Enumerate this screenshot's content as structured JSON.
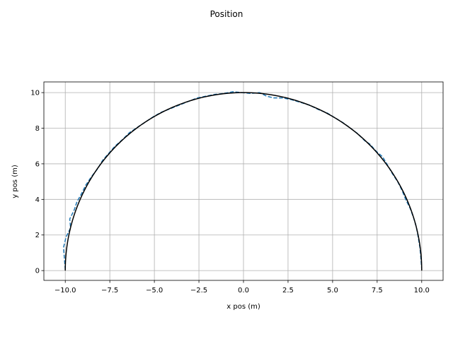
{
  "chart_data": {
    "type": "line",
    "title": "Position",
    "xlabel": "x pos (m)",
    "ylabel": "y pos (m)",
    "xlim": [
      -11.2,
      11.2
    ],
    "ylim": [
      -0.55,
      10.6
    ],
    "grid": true,
    "x_ticks": [
      -10.0,
      -7.5,
      -5.0,
      -2.5,
      0.0,
      2.5,
      5.0,
      7.5,
      10.0
    ],
    "x_tick_labels": [
      "−10.0",
      "−7.5",
      "−5.0",
      "−2.5",
      "0.0",
      "2.5",
      "5.0",
      "7.5",
      "10.0"
    ],
    "y_ticks": [
      0,
      2,
      4,
      6,
      8,
      10
    ],
    "y_tick_labels": [
      "0",
      "2",
      "4",
      "6",
      "8",
      "10"
    ],
    "series": [
      {
        "style": "dashed",
        "color": "#1f77b4",
        "x": [
          -10.0,
          -10.05,
          -10.1,
          -9.95,
          -9.7,
          -9.75,
          -9.5,
          -9.35,
          -9.1,
          -8.85,
          -8.55,
          -8.2,
          -7.9,
          -7.55,
          -7.2,
          -6.8,
          -6.4,
          -5.95,
          -5.5,
          -5.05,
          -4.6,
          -4.1,
          -3.6,
          -3.1,
          -2.6,
          -2.1,
          -1.6,
          -1.1,
          -0.6,
          -0.1,
          0.4,
          0.9,
          1.3,
          1.7,
          2.2,
          2.7,
          3.2,
          3.7,
          4.2,
          4.7,
          5.1,
          5.6,
          6.0,
          6.4,
          6.8,
          7.1,
          7.45,
          7.8,
          8.1,
          8.35,
          8.65,
          8.9,
          9.1,
          9.35,
          9.55,
          9.7,
          9.8,
          9.9,
          9.95,
          10.0
        ],
        "y": [
          0.05,
          0.7,
          1.3,
          1.9,
          2.4,
          2.9,
          3.4,
          3.85,
          4.3,
          4.8,
          5.25,
          5.7,
          6.2,
          6.6,
          7.0,
          7.35,
          7.75,
          8.05,
          8.35,
          8.65,
          8.9,
          9.1,
          9.3,
          9.5,
          9.7,
          9.8,
          9.9,
          9.95,
          10.05,
          10.0,
          9.95,
          10.0,
          9.8,
          9.7,
          9.7,
          9.6,
          9.45,
          9.3,
          9.05,
          8.85,
          8.6,
          8.3,
          8.0,
          7.7,
          7.3,
          7.1,
          6.7,
          6.4,
          5.9,
          5.45,
          5.0,
          4.5,
          4.0,
          3.5,
          2.95,
          2.45,
          1.9,
          1.3,
          0.75,
          0.1
        ]
      },
      {
        "style": "solid",
        "color": "#000000",
        "shape": "semicircle",
        "radius": 10,
        "center": [
          0,
          0
        ]
      }
    ]
  }
}
